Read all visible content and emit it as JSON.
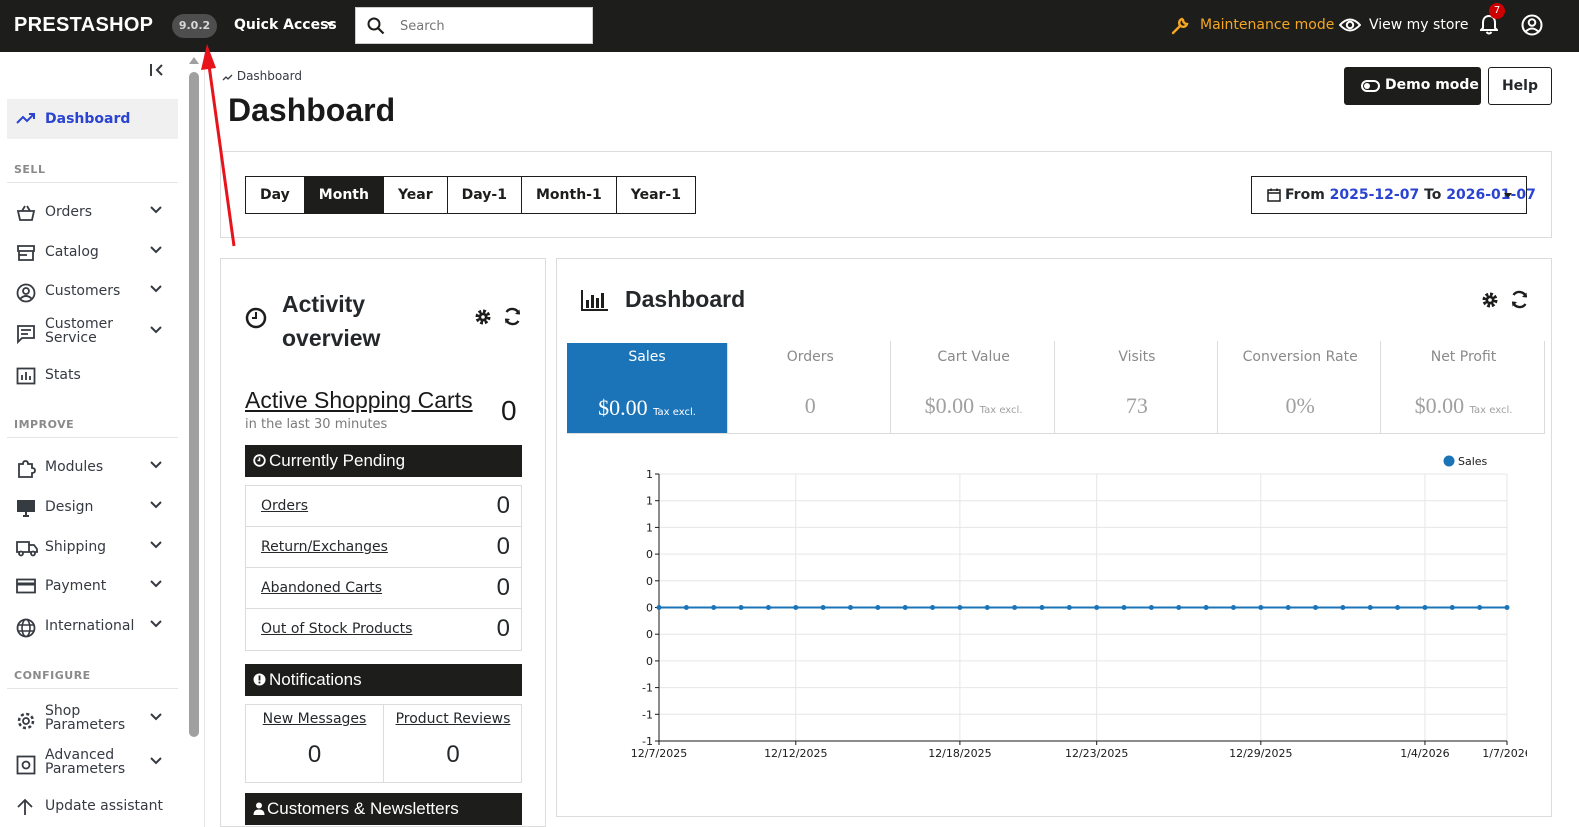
{
  "topbar": {
    "logo": "PRESTASHOP",
    "version": "9.0.2",
    "quick_access": "Quick Access",
    "search_placeholder": "Search",
    "maintenance": "Maintenance mode",
    "view_store": "View my store",
    "notif_count": "7"
  },
  "sidebar": {
    "dashboard": "Dashboard",
    "sections": {
      "sell": "SELL",
      "improve": "IMPROVE",
      "configure": "CONFIGURE"
    },
    "sell_items": [
      "Orders",
      "Catalog",
      "Customers",
      "Customer Service",
      "Stats"
    ],
    "improve_items": [
      "Modules",
      "Design",
      "Shipping",
      "Payment",
      "International"
    ],
    "configure_items": [
      "Shop Parameters",
      "Advanced Parameters",
      "Update assistant"
    ]
  },
  "header": {
    "breadcrumb": "Dashboard",
    "title": "Dashboard",
    "demo_mode": "Demo mode",
    "help": "Help"
  },
  "range": {
    "buttons": [
      "Day",
      "Month",
      "Year",
      "Day-1",
      "Month-1",
      "Year-1"
    ],
    "selected": "Month",
    "from_label": "From",
    "from": "2025-12-07",
    "to_label": "To",
    "to": "2026-01-07"
  },
  "activity": {
    "title": "Activity overview",
    "active_carts_label": "Active Shopping Carts",
    "active_carts_sub": "in the last 30 minutes",
    "active_carts_value": "0",
    "pending_title": "Currently Pending",
    "pending": [
      {
        "label": "Orders",
        "value": "0"
      },
      {
        "label": "Return/Exchanges",
        "value": "0"
      },
      {
        "label": "Abandoned Carts",
        "value": "0"
      },
      {
        "label": "Out of Stock Products",
        "value": "0"
      }
    ],
    "notifications_title": "Notifications",
    "notifications": [
      {
        "label": "New Messages",
        "value": "0"
      },
      {
        "label": "Product Reviews",
        "value": "0"
      }
    ],
    "customers_title": "Customers & Newsletters"
  },
  "dashboard": {
    "title": "Dashboard",
    "kpis": [
      {
        "label": "Sales",
        "value": "$0.00",
        "suffix": "Tax excl."
      },
      {
        "label": "Orders",
        "value": "0",
        "suffix": ""
      },
      {
        "label": "Cart Value",
        "value": "$0.00",
        "suffix": "Tax excl."
      },
      {
        "label": "Visits",
        "value": "73",
        "suffix": ""
      },
      {
        "label": "Conversion Rate",
        "value": "0%",
        "suffix": ""
      },
      {
        "label": "Net Profit",
        "value": "$0.00",
        "suffix": "Tax excl."
      }
    ]
  },
  "colors": {
    "accent": "#1c74b8",
    "brand_dark": "#1d1d1b",
    "link_blue": "#2a43d1",
    "maintenance": "#f5a623",
    "badge": "#cc0000",
    "annotation_arrow": "#e8141c"
  },
  "chart_data": {
    "type": "line",
    "legend": [
      "Sales"
    ],
    "legend_position": "top-right",
    "y_tick_labels": [
      "1",
      "1",
      "1",
      "0",
      "0",
      "0",
      "0",
      "0",
      "-1",
      "-1",
      "-1"
    ],
    "x_tick_labels": [
      "12/7/2025",
      "12/12/2025",
      "12/18/2025",
      "12/23/2025",
      "12/29/2025",
      "1/4/2026",
      "1/7/2026"
    ],
    "x": [
      "2025-12-07",
      "2025-12-08",
      "2025-12-09",
      "2025-12-10",
      "2025-12-11",
      "2025-12-12",
      "2025-12-13",
      "2025-12-14",
      "2025-12-15",
      "2025-12-16",
      "2025-12-17",
      "2025-12-18",
      "2025-12-19",
      "2025-12-20",
      "2025-12-21",
      "2025-12-22",
      "2025-12-23",
      "2025-12-24",
      "2025-12-25",
      "2025-12-26",
      "2025-12-27",
      "2025-12-28",
      "2025-12-29",
      "2025-12-30",
      "2025-12-31",
      "2026-01-01",
      "2026-01-02",
      "2026-01-03",
      "2026-01-04",
      "2026-01-05",
      "2026-01-06",
      "2026-01-07"
    ],
    "series": [
      {
        "name": "Sales",
        "values": [
          0,
          0,
          0,
          0,
          0,
          0,
          0,
          0,
          0,
          0,
          0,
          0,
          0,
          0,
          0,
          0,
          0,
          0,
          0,
          0,
          0,
          0,
          0,
          0,
          0,
          0,
          0,
          0,
          0,
          0,
          0,
          0
        ]
      }
    ],
    "ylim": [
      -1,
      1
    ],
    "grid": true
  }
}
